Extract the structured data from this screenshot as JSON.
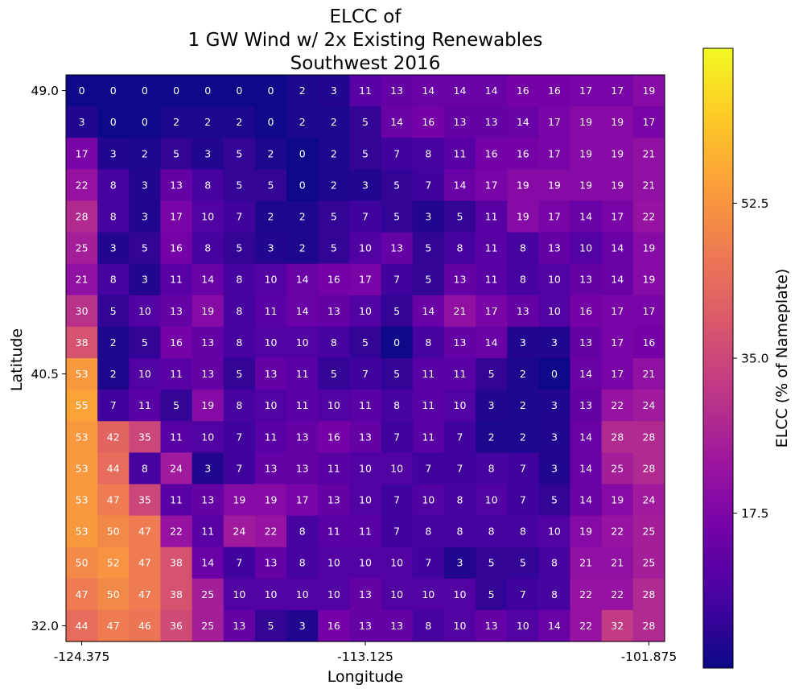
{
  "chart_data": {
    "type": "heatmap",
    "title": [
      "ELCC of",
      "1 GW Wind w/ 2x Existing Renewables",
      "Southwest 2016"
    ],
    "xlabel": "Longitude",
    "ylabel": "Latitude",
    "colorbar_label": "ELCC (% of Nameplate)",
    "colormap": "plasma",
    "colormap_stops": [
      "#0d0887",
      "#46039f",
      "#7201a8",
      "#9c179e",
      "#bd3786",
      "#d8576b",
      "#ed7953",
      "#fb9f3a",
      "#fdca26",
      "#f0f921"
    ],
    "color_range": [
      0,
      70
    ],
    "x_ticks": [
      "-124.375",
      "-113.125",
      "-101.875"
    ],
    "y_ticks": [
      "49.0",
      "40.5",
      "32.0"
    ],
    "colorbar_ticks": [
      "52.5",
      "35.0",
      "17.5"
    ],
    "colorbar_tick_values": [
      52.5,
      35.0,
      17.5
    ],
    "rows_top_to_bottom": [
      [
        0,
        0,
        0,
        0,
        0,
        0,
        0,
        2,
        3,
        11,
        13,
        14,
        14,
        14,
        16,
        16,
        17,
        17,
        19
      ],
      [
        3,
        0,
        0,
        2,
        2,
        2,
        0,
        2,
        2,
        5,
        14,
        16,
        13,
        13,
        14,
        17,
        19,
        19,
        17
      ],
      [
        17,
        3,
        2,
        5,
        3,
        5,
        2,
        0,
        2,
        5,
        7,
        8,
        11,
        16,
        16,
        17,
        19,
        19,
        21
      ],
      [
        22,
        8,
        3,
        13,
        8,
        5,
        5,
        0,
        2,
        3,
        5,
        7,
        14,
        17,
        19,
        19,
        19,
        19,
        21
      ],
      [
        28,
        8,
        3,
        17,
        10,
        7,
        2,
        2,
        5,
        7,
        5,
        3,
        5,
        11,
        19,
        17,
        14,
        17,
        22
      ],
      [
        25,
        3,
        5,
        16,
        8,
        5,
        3,
        2,
        5,
        10,
        13,
        5,
        8,
        11,
        8,
        13,
        10,
        14,
        19
      ],
      [
        21,
        8,
        3,
        11,
        14,
        8,
        10,
        14,
        16,
        17,
        7,
        5,
        13,
        11,
        8,
        10,
        13,
        14,
        19
      ],
      [
        30,
        5,
        10,
        13,
        19,
        8,
        11,
        14,
        13,
        10,
        5,
        14,
        21,
        17,
        13,
        10,
        16,
        17,
        17
      ],
      [
        38,
        2,
        5,
        16,
        13,
        8,
        10,
        10,
        8,
        5,
        0,
        8,
        13,
        14,
        3,
        3,
        13,
        17,
        16
      ],
      [
        53,
        2,
        10,
        11,
        13,
        5,
        13,
        11,
        5,
        7,
        5,
        11,
        11,
        5,
        2,
        0,
        14,
        17,
        21
      ],
      [
        55,
        7,
        11,
        5,
        19,
        8,
        10,
        11,
        10,
        11,
        8,
        11,
        10,
        3,
        2,
        3,
        13,
        22,
        24
      ],
      [
        53,
        42,
        35,
        11,
        10,
        7,
        11,
        13,
        16,
        13,
        7,
        11,
        7,
        2,
        2,
        3,
        14,
        28,
        28
      ],
      [
        53,
        44,
        8,
        24,
        3,
        7,
        13,
        13,
        11,
        10,
        10,
        7,
        7,
        8,
        7,
        3,
        14,
        25,
        28
      ],
      [
        53,
        47,
        35,
        11,
        13,
        19,
        19,
        17,
        13,
        10,
        7,
        10,
        8,
        10,
        7,
        5,
        14,
        19,
        24
      ],
      [
        53,
        50,
        47,
        22,
        11,
        24,
        22,
        8,
        11,
        11,
        7,
        8,
        8,
        8,
        8,
        10,
        19,
        22,
        25
      ],
      [
        50,
        52,
        47,
        38,
        14,
        7,
        13,
        8,
        10,
        10,
        10,
        7,
        3,
        5,
        5,
        8,
        21,
        21,
        25
      ],
      [
        47,
        50,
        47,
        38,
        25,
        10,
        10,
        10,
        10,
        13,
        10,
        10,
        10,
        5,
        7,
        8,
        22,
        22,
        28
      ],
      [
        44,
        47,
        46,
        36,
        25,
        13,
        5,
        3,
        16,
        13,
        13,
        8,
        10,
        13,
        10,
        14,
        22,
        32,
        28
      ]
    ]
  }
}
